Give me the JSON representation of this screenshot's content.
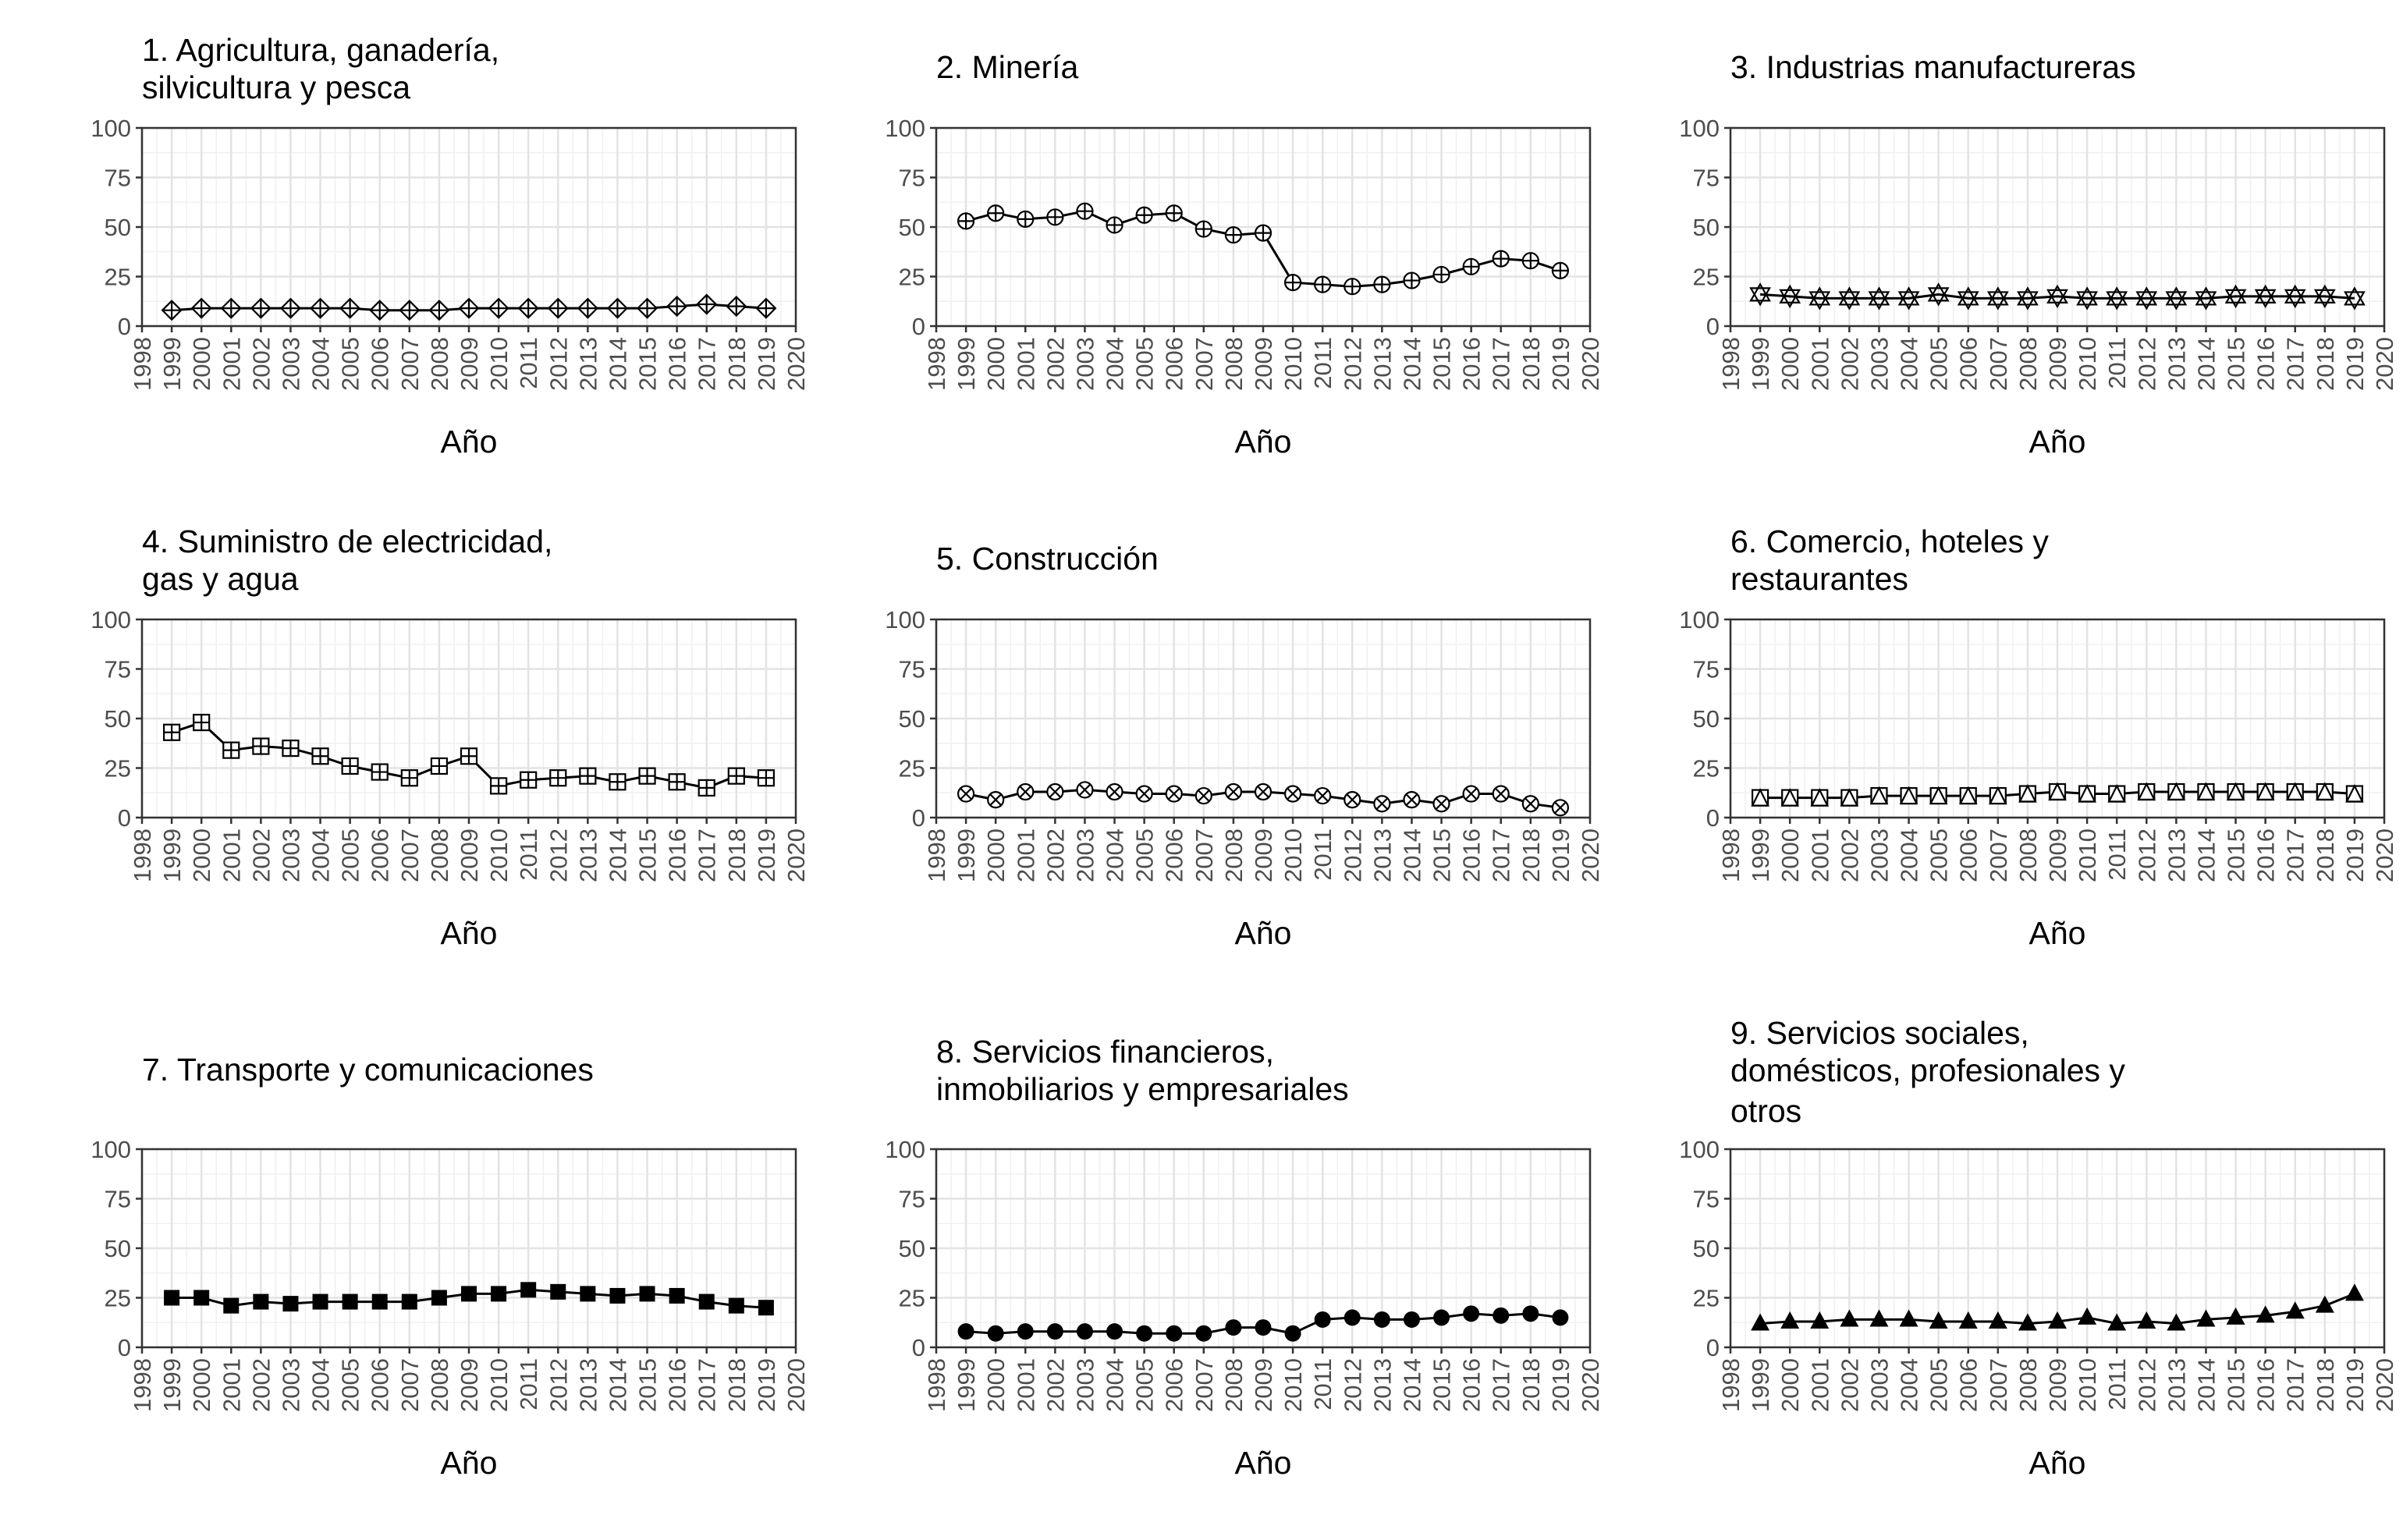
{
  "chart_data": [
    {
      "type": "line",
      "title": [
        "1. Agricultura, ganadería,",
        "silvicultura y pesca"
      ],
      "xlabel": "Año",
      "ylabel": "",
      "ylim": [
        0,
        100
      ],
      "xlim": [
        1998,
        2020
      ],
      "y_ticks": [
        "0",
        "25",
        "50",
        "75",
        "100"
      ],
      "x_ticks": [
        "1998",
        "1999",
        "2000",
        "2001",
        "2002",
        "2003",
        "2004",
        "2005",
        "2006",
        "2007",
        "2008",
        "2009",
        "2010",
        "2011",
        "2012",
        "2013",
        "2014",
        "2015",
        "2016",
        "2017",
        "2018",
        "2019",
        "2020"
      ],
      "grid": true,
      "marker": "diamond-plus",
      "x": [
        1999,
        2000,
        2001,
        2002,
        2003,
        2004,
        2005,
        2006,
        2007,
        2008,
        2009,
        2010,
        2011,
        2012,
        2013,
        2014,
        2015,
        2016,
        2017,
        2018,
        2019
      ],
      "values": [
        8,
        9,
        9,
        9,
        9,
        9,
        9,
        8,
        8,
        8,
        9,
        9,
        9,
        9,
        9,
        9,
        9,
        10,
        11,
        10,
        9
      ]
    },
    {
      "type": "line",
      "title": [
        "2. Minería"
      ],
      "xlabel": "Año",
      "ylabel": "",
      "ylim": [
        0,
        100
      ],
      "xlim": [
        1998,
        2020
      ],
      "y_ticks": [
        "0",
        "25",
        "50",
        "75",
        "100"
      ],
      "x_ticks": [
        "1998",
        "1999",
        "2000",
        "2001",
        "2002",
        "2003",
        "2004",
        "2005",
        "2006",
        "2007",
        "2008",
        "2009",
        "2010",
        "2011",
        "2012",
        "2013",
        "2014",
        "2015",
        "2016",
        "2017",
        "2018",
        "2019",
        "2020"
      ],
      "grid": true,
      "marker": "circle-plus",
      "x": [
        1999,
        2000,
        2001,
        2002,
        2003,
        2004,
        2005,
        2006,
        2007,
        2008,
        2009,
        2010,
        2011,
        2012,
        2013,
        2014,
        2015,
        2016,
        2017,
        2018,
        2019
      ],
      "values": [
        53,
        57,
        54,
        55,
        58,
        51,
        56,
        57,
        49,
        46,
        47,
        22,
        21,
        20,
        21,
        23,
        26,
        30,
        34,
        33,
        28
      ]
    },
    {
      "type": "line",
      "title": [
        "3. Industrias manufactureras"
      ],
      "xlabel": "Año",
      "ylabel": "",
      "ylim": [
        0,
        100
      ],
      "xlim": [
        1998,
        2020
      ],
      "y_ticks": [
        "0",
        "25",
        "50",
        "75",
        "100"
      ],
      "x_ticks": [
        "1998",
        "1999",
        "2000",
        "2001",
        "2002",
        "2003",
        "2004",
        "2005",
        "2006",
        "2007",
        "2008",
        "2009",
        "2010",
        "2011",
        "2012",
        "2013",
        "2014",
        "2015",
        "2016",
        "2017",
        "2018",
        "2019",
        "2020"
      ],
      "grid": true,
      "marker": "hexagram",
      "x": [
        1999,
        2000,
        2001,
        2002,
        2003,
        2004,
        2005,
        2006,
        2007,
        2008,
        2009,
        2010,
        2011,
        2012,
        2013,
        2014,
        2015,
        2016,
        2017,
        2018,
        2019
      ],
      "values": [
        16,
        15,
        14,
        14,
        14,
        14,
        16,
        14,
        14,
        14,
        15,
        14,
        14,
        14,
        14,
        14,
        15,
        15,
        15,
        15,
        14
      ]
    },
    {
      "type": "line",
      "title": [
        "4. Suministro de electricidad,",
        "gas y agua"
      ],
      "xlabel": "Año",
      "ylabel": "",
      "ylim": [
        0,
        100
      ],
      "xlim": [
        1998,
        2020
      ],
      "y_ticks": [
        "0",
        "25",
        "50",
        "75",
        "100"
      ],
      "x_ticks": [
        "1998",
        "1999",
        "2000",
        "2001",
        "2002",
        "2003",
        "2004",
        "2005",
        "2006",
        "2007",
        "2008",
        "2009",
        "2010",
        "2011",
        "2012",
        "2013",
        "2014",
        "2015",
        "2016",
        "2017",
        "2018",
        "2019",
        "2020"
      ],
      "grid": true,
      "marker": "square-plus",
      "x": [
        1999,
        2000,
        2001,
        2002,
        2003,
        2004,
        2005,
        2006,
        2007,
        2008,
        2009,
        2010,
        2011,
        2012,
        2013,
        2014,
        2015,
        2016,
        2017,
        2018,
        2019
      ],
      "values": [
        43,
        48,
        34,
        36,
        35,
        31,
        26,
        23,
        20,
        26,
        31,
        16,
        19,
        20,
        21,
        18,
        21,
        18,
        15,
        21,
        20
      ]
    },
    {
      "type": "line",
      "title": [
        "5. Construcción"
      ],
      "xlabel": "Año",
      "ylabel": "",
      "ylim": [
        0,
        100
      ],
      "xlim": [
        1998,
        2020
      ],
      "y_ticks": [
        "0",
        "25",
        "50",
        "75",
        "100"
      ],
      "x_ticks": [
        "1998",
        "1999",
        "2000",
        "2001",
        "2002",
        "2003",
        "2004",
        "2005",
        "2006",
        "2007",
        "2008",
        "2009",
        "2010",
        "2011",
        "2012",
        "2013",
        "2014",
        "2015",
        "2016",
        "2017",
        "2018",
        "2019",
        "2020"
      ],
      "grid": true,
      "marker": "circle-cross",
      "x": [
        1999,
        2000,
        2001,
        2002,
        2003,
        2004,
        2005,
        2006,
        2007,
        2008,
        2009,
        2010,
        2011,
        2012,
        2013,
        2014,
        2015,
        2016,
        2017,
        2018,
        2019
      ],
      "values": [
        12,
        9,
        13,
        13,
        14,
        13,
        12,
        12,
        11,
        13,
        13,
        12,
        11,
        9,
        7,
        9,
        7,
        12,
        12,
        7,
        5
      ]
    },
    {
      "type": "line",
      "title": [
        "6. Comercio, hoteles y",
        "restaurantes"
      ],
      "xlabel": "Año",
      "ylabel": "",
      "ylim": [
        0,
        100
      ],
      "xlim": [
        1998,
        2020
      ],
      "y_ticks": [
        "0",
        "25",
        "50",
        "75",
        "100"
      ],
      "x_ticks": [
        "1998",
        "1999",
        "2000",
        "2001",
        "2002",
        "2003",
        "2004",
        "2005",
        "2006",
        "2007",
        "2008",
        "2009",
        "2010",
        "2011",
        "2012",
        "2013",
        "2014",
        "2015",
        "2016",
        "2017",
        "2018",
        "2019",
        "2020"
      ],
      "grid": true,
      "marker": "square-triangle",
      "x": [
        1999,
        2000,
        2001,
        2002,
        2003,
        2004,
        2005,
        2006,
        2007,
        2008,
        2009,
        2010,
        2011,
        2012,
        2013,
        2014,
        2015,
        2016,
        2017,
        2018,
        2019
      ],
      "values": [
        10,
        10,
        10,
        10,
        11,
        11,
        11,
        11,
        11,
        12,
        13,
        12,
        12,
        13,
        13,
        13,
        13,
        13,
        13,
        13,
        12
      ]
    },
    {
      "type": "line",
      "title": [
        "7. Transporte y comunicaciones"
      ],
      "xlabel": "Año",
      "ylabel": "",
      "ylim": [
        0,
        100
      ],
      "xlim": [
        1998,
        2020
      ],
      "y_ticks": [
        "0",
        "25",
        "50",
        "75",
        "100"
      ],
      "x_ticks": [
        "1998",
        "1999",
        "2000",
        "2001",
        "2002",
        "2003",
        "2004",
        "2005",
        "2006",
        "2007",
        "2008",
        "2009",
        "2010",
        "2011",
        "2012",
        "2013",
        "2014",
        "2015",
        "2016",
        "2017",
        "2018",
        "2019",
        "2020"
      ],
      "grid": true,
      "marker": "filled-square",
      "x": [
        1999,
        2000,
        2001,
        2002,
        2003,
        2004,
        2005,
        2006,
        2007,
        2008,
        2009,
        2010,
        2011,
        2012,
        2013,
        2014,
        2015,
        2016,
        2017,
        2018,
        2019
      ],
      "values": [
        25,
        25,
        21,
        23,
        22,
        23,
        23,
        23,
        23,
        25,
        27,
        27,
        29,
        28,
        27,
        26,
        27,
        26,
        23,
        21,
        20
      ]
    },
    {
      "type": "line",
      "title": [
        "8. Servicios financieros,",
        "inmobiliarios y empresariales"
      ],
      "xlabel": "Año",
      "ylabel": "",
      "ylim": [
        0,
        100
      ],
      "xlim": [
        1998,
        2020
      ],
      "y_ticks": [
        "0",
        "25",
        "50",
        "75",
        "100"
      ],
      "x_ticks": [
        "1998",
        "1999",
        "2000",
        "2001",
        "2002",
        "2003",
        "2004",
        "2005",
        "2006",
        "2007",
        "2008",
        "2009",
        "2010",
        "2011",
        "2012",
        "2013",
        "2014",
        "2015",
        "2016",
        "2017",
        "2018",
        "2019",
        "2020"
      ],
      "grid": true,
      "marker": "filled-circle",
      "x": [
        1999,
        2000,
        2001,
        2002,
        2003,
        2004,
        2005,
        2006,
        2007,
        2008,
        2009,
        2010,
        2011,
        2012,
        2013,
        2014,
        2015,
        2016,
        2017,
        2018,
        2019
      ],
      "values": [
        8,
        7,
        8,
        8,
        8,
        8,
        7,
        7,
        7,
        10,
        10,
        7,
        14,
        15,
        14,
        14,
        15,
        17,
        16,
        17,
        15
      ]
    },
    {
      "type": "line",
      "title": [
        "9. Servicios sociales,",
        "domésticos, profesionales y",
        "otros"
      ],
      "xlabel": "Año",
      "ylabel": "",
      "ylim": [
        0,
        100
      ],
      "xlim": [
        1998,
        2020
      ],
      "y_ticks": [
        "0",
        "25",
        "50",
        "75",
        "100"
      ],
      "x_ticks": [
        "1998",
        "1999",
        "2000",
        "2001",
        "2002",
        "2003",
        "2004",
        "2005",
        "2006",
        "2007",
        "2008",
        "2009",
        "2010",
        "2011",
        "2012",
        "2013",
        "2014",
        "2015",
        "2016",
        "2017",
        "2018",
        "2019",
        "2020"
      ],
      "grid": true,
      "marker": "filled-triangle",
      "x": [
        1999,
        2000,
        2001,
        2002,
        2003,
        2004,
        2005,
        2006,
        2007,
        2008,
        2009,
        2010,
        2011,
        2012,
        2013,
        2014,
        2015,
        2016,
        2017,
        2018,
        2019
      ],
      "values": [
        12,
        13,
        13,
        14,
        14,
        14,
        13,
        13,
        13,
        12,
        13,
        15,
        12,
        13,
        12,
        14,
        15,
        16,
        18,
        21,
        27
      ]
    }
  ]
}
